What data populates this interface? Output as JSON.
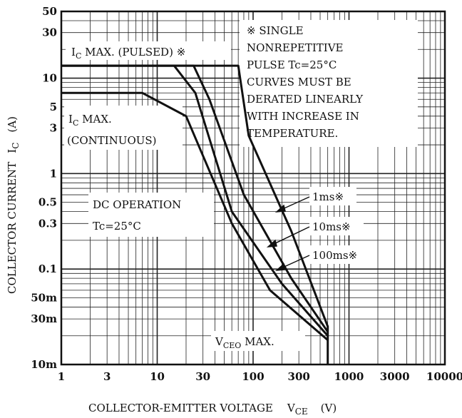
{
  "chart_data": {
    "type": "line",
    "title": "",
    "xscale": "log",
    "yscale": "log",
    "xlim": [
      1,
      10000
    ],
    "ylim": [
      0.01,
      50
    ],
    "grid": true,
    "xlabel": {
      "main": "COLLECTOR-EMITTER VOLTAGE",
      "symbol": "V",
      "sub": "CE",
      "unit": "(V)"
    },
    "ylabel": {
      "main": "COLLECTOR CURRENT",
      "symbol": "I",
      "sub": "C",
      "unit": "(A)"
    },
    "x_tick_labels": [
      {
        "value": 1,
        "label": "1"
      },
      {
        "value": 3,
        "label": "3"
      },
      {
        "value": 10,
        "label": "10"
      },
      {
        "value": 30,
        "label": "30"
      },
      {
        "value": 100,
        "label": "100"
      },
      {
        "value": 300,
        "label": "300"
      },
      {
        "value": 1000,
        "label": "1000"
      },
      {
        "value": 3000,
        "label": "3000"
      },
      {
        "value": 10000,
        "label": "10000"
      }
    ],
    "y_tick_labels": [
      {
        "value": 50,
        "label": "50"
      },
      {
        "value": 30,
        "label": "30"
      },
      {
        "value": 10,
        "label": "10"
      },
      {
        "value": 5,
        "label": "5"
      },
      {
        "value": 3,
        "label": "3"
      },
      {
        "value": 1,
        "label": "1"
      },
      {
        "value": 0.5,
        "label": "0.5"
      },
      {
        "value": 0.3,
        "label": "0.3"
      },
      {
        "value": 0.1,
        "label": "0.1"
      },
      {
        "value": 0.05,
        "label": "50m"
      },
      {
        "value": 0.03,
        "label": "30m"
      },
      {
        "value": 0.01,
        "label": "10m"
      }
    ],
    "series": [
      {
        "id": "dc",
        "points": [
          [
            1,
            7
          ],
          [
            7,
            7
          ],
          [
            20,
            4
          ],
          [
            60,
            0.3
          ],
          [
            150,
            0.06
          ],
          [
            600,
            0.018
          ]
        ]
      },
      {
        "id": "100ms",
        "points": [
          [
            1,
            13.5
          ],
          [
            15,
            13.5
          ],
          [
            25,
            7
          ],
          [
            60,
            0.4
          ],
          [
            200,
            0.07
          ],
          [
            600,
            0.02
          ]
        ]
      },
      {
        "id": "10ms",
        "points": [
          [
            1,
            13.5
          ],
          [
            24,
            13.5
          ],
          [
            35,
            6
          ],
          [
            80,
            0.6
          ],
          [
            250,
            0.08
          ],
          [
            600,
            0.022
          ]
        ]
      },
      {
        "id": "1ms",
        "points": [
          [
            1,
            13.5
          ],
          [
            70,
            13.5
          ],
          [
            90,
            2.5
          ],
          [
            250,
            0.25
          ],
          [
            600,
            0.025
          ],
          [
            600,
            0.01
          ]
        ]
      }
    ],
    "annotations": {
      "ic_pulsed": {
        "prefix": "I",
        "sub": "C",
        "text": " MAX. (PULSED) ※"
      },
      "ic_cont_1": {
        "prefix": "I",
        "sub": "C",
        "text": " MAX."
      },
      "ic_cont_2": "(CONTINUOUS)",
      "dc_op_1": "DC OPERATION",
      "dc_op_2": "Tc=25°C",
      "note": [
        "※ SINGLE",
        "NONREPETITIVE",
        "PULSE  Tc=25°C",
        "CURVES MUST BE",
        "DERATED LINEARLY",
        "WITH INCREASE IN",
        "TEMPERATURE."
      ],
      "label_1ms": "1ms※",
      "label_10ms": "10ms※",
      "label_100ms": "100ms※",
      "vceo": {
        "prefix": "V",
        "sub": "CEO",
        "text": " MAX."
      }
    }
  }
}
